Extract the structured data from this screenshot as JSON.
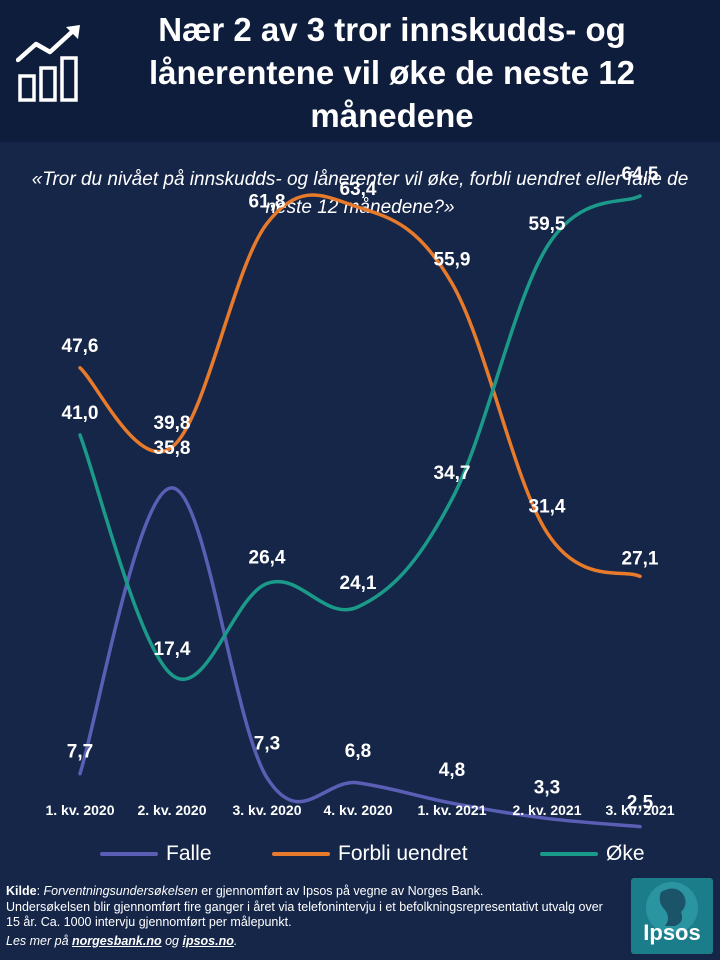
{
  "header": {
    "title": "Nær 2 av 3 tror innskudds- og lånerentene vil øke de neste 12 månedene",
    "icon": "bar-chart-trend-icon"
  },
  "subtitle": "«Tror du nivået på innskudds- og lånerenter vil øke, forbli uendret eller falle de neste 12 månedene?»",
  "chart_data": {
    "type": "line",
    "title": "Nær 2 av 3 tror innskudds- og lånerentene vil øke de neste 12 månedene",
    "categories": [
      "1. kv. 2020",
      "2. kv. 2020",
      "3. kv. 2020",
      "4. kv. 2020",
      "1. kv. 2021",
      "2. kv. 2021",
      "3. kv. 2021"
    ],
    "series": [
      {
        "name": "Falle",
        "color": "#5a5fb5",
        "values": [
          7.7,
          35.8,
          7.3,
          6.8,
          4.8,
          3.3,
          2.5
        ],
        "labels": [
          "7,7",
          "35,8",
          "7,3",
          "6,8",
          "4,8",
          "3,3",
          "2,5"
        ]
      },
      {
        "name": "Forbli uendret",
        "color": "#e87b2b",
        "values": [
          47.6,
          39.8,
          61.8,
          63.4,
          55.9,
          31.4,
          27.1
        ],
        "labels": [
          "47,6",
          "39,8",
          "61,8",
          "63,4",
          "55,9",
          "31,4",
          "27,1"
        ]
      },
      {
        "name": "Øke",
        "color": "#1b9a8a",
        "values": [
          41.0,
          17.4,
          26.4,
          24.1,
          34.7,
          59.5,
          64.5
        ],
        "labels": [
          "41,0",
          "17,4",
          "26,4",
          "24,1",
          "34,7",
          "59,5",
          "64,5"
        ]
      }
    ],
    "ylim": [
      0,
      70
    ],
    "xlabel": "",
    "ylabel": "",
    "grid": false,
    "legend": "bottom"
  },
  "legend": {
    "falle": "Falle",
    "uendret": "Forbli uendret",
    "oke": "Øke"
  },
  "footer": {
    "kilde_label": "Kilde",
    "kilde_italic": "Forventningsundersøkelsen",
    "kilde_rest": " er gjennomført av Ipsos på vegne av Norges Bank.",
    "line2": "Undersøkelsen blir gjennomført fire ganger i året via telefonintervju i et befolkningsrepresentativt utvalg over 15 år. Ca. 1000 intervju gjennomført per målepunkt.",
    "lesmer_pre": "Les mer på ",
    "link1": "norgesbank.no",
    "lesmer_mid": " og ",
    "link2": "ipsos.no",
    "lesmer_end": "."
  },
  "logo": {
    "text": "Ipsos"
  }
}
